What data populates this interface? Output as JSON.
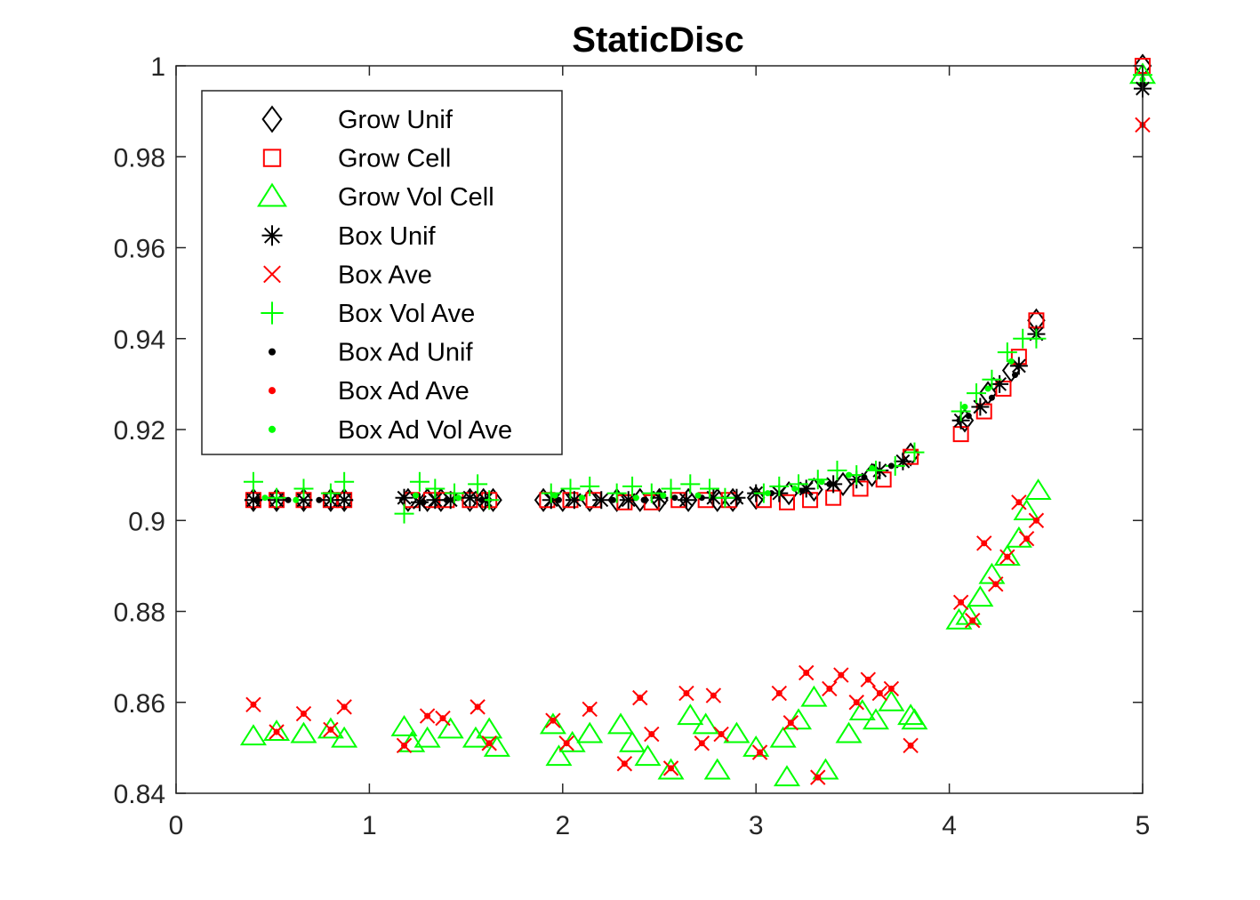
{
  "chart_data": {
    "type": "scatter",
    "title": "StaticDisc",
    "xlabel": "",
    "ylabel": "",
    "xlim": [
      0,
      5
    ],
    "ylim": [
      0.84,
      1
    ],
    "x_ticks": [
      "0",
      "1",
      "2",
      "3",
      "4",
      "5"
    ],
    "y_ticks": [
      "0.84",
      "0.86",
      "0.88",
      "0.9",
      "0.92",
      "0.94",
      "0.96",
      "0.98",
      "1"
    ],
    "grid": false,
    "legend_position": "top-left",
    "series": [
      {
        "name": "Grow Unif",
        "marker": "diamond",
        "color": "#000000",
        "x": [
          0.4,
          0.52,
          0.66,
          0.8,
          0.87,
          1.2,
          1.3,
          1.37,
          1.52,
          1.59,
          1.64,
          1.9,
          2.0,
          2.14,
          2.28,
          2.4,
          2.5,
          2.65,
          2.8,
          2.88,
          3.0,
          3.17,
          3.3,
          3.45,
          3.6,
          3.8,
          4.08,
          4.2,
          4.32,
          4.45,
          5.0
        ],
        "y": [
          0.9045,
          0.9045,
          0.9045,
          0.9045,
          0.9045,
          0.9045,
          0.9045,
          0.9045,
          0.9045,
          0.9045,
          0.9045,
          0.9045,
          0.9045,
          0.9045,
          0.9045,
          0.9045,
          0.9045,
          0.9045,
          0.9045,
          0.9045,
          0.905,
          0.906,
          0.9068,
          0.908,
          0.91,
          0.9145,
          0.922,
          0.928,
          0.933,
          0.944,
          1.0
        ]
      },
      {
        "name": "Grow Cell",
        "marker": "square",
        "color": "#ff0000",
        "x": [
          0.4,
          0.52,
          0.66,
          0.8,
          0.87,
          1.22,
          1.32,
          1.4,
          1.52,
          1.62,
          1.92,
          2.04,
          2.16,
          2.32,
          2.46,
          2.6,
          2.74,
          2.86,
          3.04,
          3.16,
          3.28,
          3.4,
          3.54,
          3.66,
          3.8,
          4.06,
          4.18,
          4.28,
          4.36,
          4.45,
          5.0
        ],
        "y": [
          0.9045,
          0.9045,
          0.9045,
          0.9045,
          0.9045,
          0.9045,
          0.9045,
          0.9045,
          0.9045,
          0.9045,
          0.9045,
          0.9045,
          0.9045,
          0.904,
          0.904,
          0.9045,
          0.9045,
          0.9045,
          0.9045,
          0.904,
          0.9045,
          0.905,
          0.907,
          0.909,
          0.914,
          0.919,
          0.924,
          0.929,
          0.936,
          0.944,
          1.0
        ]
      },
      {
        "name": "Grow Vol Cell",
        "marker": "triangle",
        "color": "#00ff00",
        "x": [
          0.4,
          0.52,
          0.66,
          0.8,
          0.87,
          1.18,
          1.22,
          1.3,
          1.42,
          1.55,
          1.62,
          1.66,
          1.95,
          1.98,
          2.05,
          2.14,
          2.3,
          2.36,
          2.44,
          2.56,
          2.66,
          2.74,
          2.8,
          2.9,
          3.0,
          3.14,
          3.16,
          3.22,
          3.3,
          3.36,
          3.48,
          3.55,
          3.62,
          3.7,
          3.8,
          3.82,
          4.05,
          4.1,
          4.16,
          4.22,
          4.3,
          4.36,
          4.4,
          4.46,
          5.0
        ],
        "y": [
          0.8525,
          0.8535,
          0.853,
          0.854,
          0.852,
          0.8545,
          0.851,
          0.852,
          0.854,
          0.852,
          0.854,
          0.85,
          0.855,
          0.848,
          0.851,
          0.853,
          0.855,
          0.851,
          0.848,
          0.845,
          0.857,
          0.855,
          0.845,
          0.853,
          0.85,
          0.852,
          0.8435,
          0.856,
          0.861,
          0.845,
          0.853,
          0.858,
          0.856,
          0.86,
          0.857,
          0.856,
          0.878,
          0.879,
          0.883,
          0.888,
          0.892,
          0.896,
          0.902,
          0.9065,
          0.998
        ]
      },
      {
        "name": "Box Unif",
        "marker": "asterisk",
        "color": "#000000",
        "x": [
          0.4,
          0.52,
          0.66,
          0.8,
          0.87,
          1.18,
          1.26,
          1.34,
          1.42,
          1.52,
          1.6,
          1.94,
          2.06,
          2.2,
          2.34,
          2.5,
          2.64,
          2.78,
          2.9,
          3.0,
          3.12,
          3.26,
          3.4,
          3.52,
          3.64,
          3.76,
          4.06,
          4.16,
          4.26,
          4.36,
          4.45,
          5.0
        ],
        "y": [
          0.9045,
          0.9045,
          0.9045,
          0.9045,
          0.9045,
          0.905,
          0.904,
          0.9045,
          0.9045,
          0.905,
          0.9045,
          0.9045,
          0.9045,
          0.9045,
          0.9045,
          0.905,
          0.9045,
          0.905,
          0.905,
          0.906,
          0.906,
          0.907,
          0.908,
          0.909,
          0.911,
          0.913,
          0.922,
          0.925,
          0.93,
          0.934,
          0.941,
          0.995
        ]
      },
      {
        "name": "Box Ave",
        "marker": "x",
        "color": "#ff0000",
        "x": [
          0.4,
          0.52,
          0.66,
          0.8,
          0.87,
          1.18,
          1.3,
          1.38,
          1.56,
          1.62,
          1.95,
          2.02,
          2.14,
          2.32,
          2.4,
          2.46,
          2.56,
          2.64,
          2.72,
          2.78,
          2.82,
          3.02,
          3.12,
          3.18,
          3.26,
          3.32,
          3.38,
          3.44,
          3.52,
          3.58,
          3.64,
          3.7,
          3.8,
          4.06,
          4.12,
          4.18,
          4.24,
          4.3,
          4.36,
          4.4,
          4.45,
          5.0
        ],
        "y": [
          0.8595,
          0.8535,
          0.8575,
          0.854,
          0.859,
          0.8505,
          0.857,
          0.8565,
          0.859,
          0.851,
          0.856,
          0.851,
          0.8585,
          0.8465,
          0.861,
          0.853,
          0.8455,
          0.862,
          0.851,
          0.8615,
          0.853,
          0.849,
          0.862,
          0.8555,
          0.8665,
          0.8435,
          0.863,
          0.866,
          0.86,
          0.865,
          0.862,
          0.863,
          0.8505,
          0.882,
          0.878,
          0.895,
          0.886,
          0.892,
          0.904,
          0.896,
          0.9,
          0.987
        ]
      },
      {
        "name": "Box Vol Ave",
        "marker": "plus",
        "color": "#00ff00",
        "x": [
          0.4,
          0.52,
          0.66,
          0.8,
          0.87,
          1.18,
          1.26,
          1.34,
          1.44,
          1.56,
          1.62,
          1.94,
          2.04,
          2.14,
          2.28,
          2.36,
          2.46,
          2.56,
          2.66,
          2.76,
          2.84,
          3.04,
          3.12,
          3.22,
          3.32,
          3.42,
          3.52,
          3.62,
          3.72,
          3.82,
          4.06,
          4.14,
          4.22,
          4.3,
          4.38,
          4.45,
          5.0
        ],
        "y": [
          0.9085,
          0.905,
          0.907,
          0.906,
          0.9085,
          0.9015,
          0.9085,
          0.907,
          0.906,
          0.908,
          0.9045,
          0.906,
          0.907,
          0.9075,
          0.906,
          0.9075,
          0.906,
          0.907,
          0.908,
          0.907,
          0.905,
          0.906,
          0.9075,
          0.908,
          0.909,
          0.911,
          0.91,
          0.911,
          0.912,
          0.915,
          0.924,
          0.928,
          0.931,
          0.937,
          0.94,
          0.94,
          0.998
        ]
      },
      {
        "name": "Box Ad Unif",
        "marker": "dot",
        "color": "#000000",
        "x": [
          0.42,
          0.58,
          0.74,
          1.28,
          1.4,
          1.58,
          1.98,
          2.26,
          2.42,
          2.58,
          2.72,
          3.08,
          3.24,
          3.38,
          3.56,
          3.7,
          4.1,
          4.22,
          4.34,
          5.0
        ],
        "y": [
          0.9045,
          0.9045,
          0.9045,
          0.904,
          0.9045,
          0.9045,
          0.9045,
          0.9045,
          0.9045,
          0.905,
          0.905,
          0.906,
          0.9065,
          0.908,
          0.9095,
          0.912,
          0.923,
          0.927,
          0.932,
          0.996
        ]
      },
      {
        "name": "Box Ad Ave",
        "marker": "dot",
        "color": "#ff0000",
        "x": [
          0.4,
          0.52,
          0.66,
          0.8,
          0.87,
          1.18,
          1.3,
          1.38,
          1.56,
          1.62,
          1.95,
          2.02,
          2.14,
          2.32,
          2.4,
          2.46,
          2.56,
          2.64,
          2.72,
          2.78,
          2.82,
          3.02,
          3.12,
          3.18,
          3.26,
          3.32,
          3.38,
          3.44,
          3.52,
          3.58,
          3.64,
          3.7,
          3.8,
          4.06,
          4.12,
          4.18,
          4.24,
          4.3,
          4.36,
          4.4,
          4.45,
          5.0
        ],
        "y": [
          0.8595,
          0.8535,
          0.8575,
          0.854,
          0.859,
          0.8505,
          0.857,
          0.8565,
          0.859,
          0.851,
          0.856,
          0.851,
          0.8585,
          0.8465,
          0.861,
          0.853,
          0.8455,
          0.862,
          0.851,
          0.8615,
          0.853,
          0.849,
          0.862,
          0.8555,
          0.8665,
          0.8435,
          0.863,
          0.866,
          0.86,
          0.865,
          0.862,
          0.863,
          0.8505,
          0.882,
          0.878,
          0.895,
          0.886,
          0.892,
          0.904,
          0.896,
          0.9,
          0.987
        ]
      },
      {
        "name": "Box Ad Vol Ave",
        "marker": "dot",
        "color": "#00ff00",
        "x": [
          0.46,
          0.62,
          1.24,
          1.46,
          1.96,
          2.1,
          2.38,
          2.52,
          2.7,
          3.06,
          3.2,
          3.34,
          3.48,
          3.6,
          4.08,
          4.2,
          4.32,
          5.0
        ],
        "y": [
          0.905,
          0.9045,
          0.9055,
          0.905,
          0.9055,
          0.905,
          0.905,
          0.9055,
          0.9055,
          0.906,
          0.907,
          0.9085,
          0.91,
          0.9115,
          0.925,
          0.929,
          0.935,
          0.997
        ]
      }
    ]
  }
}
